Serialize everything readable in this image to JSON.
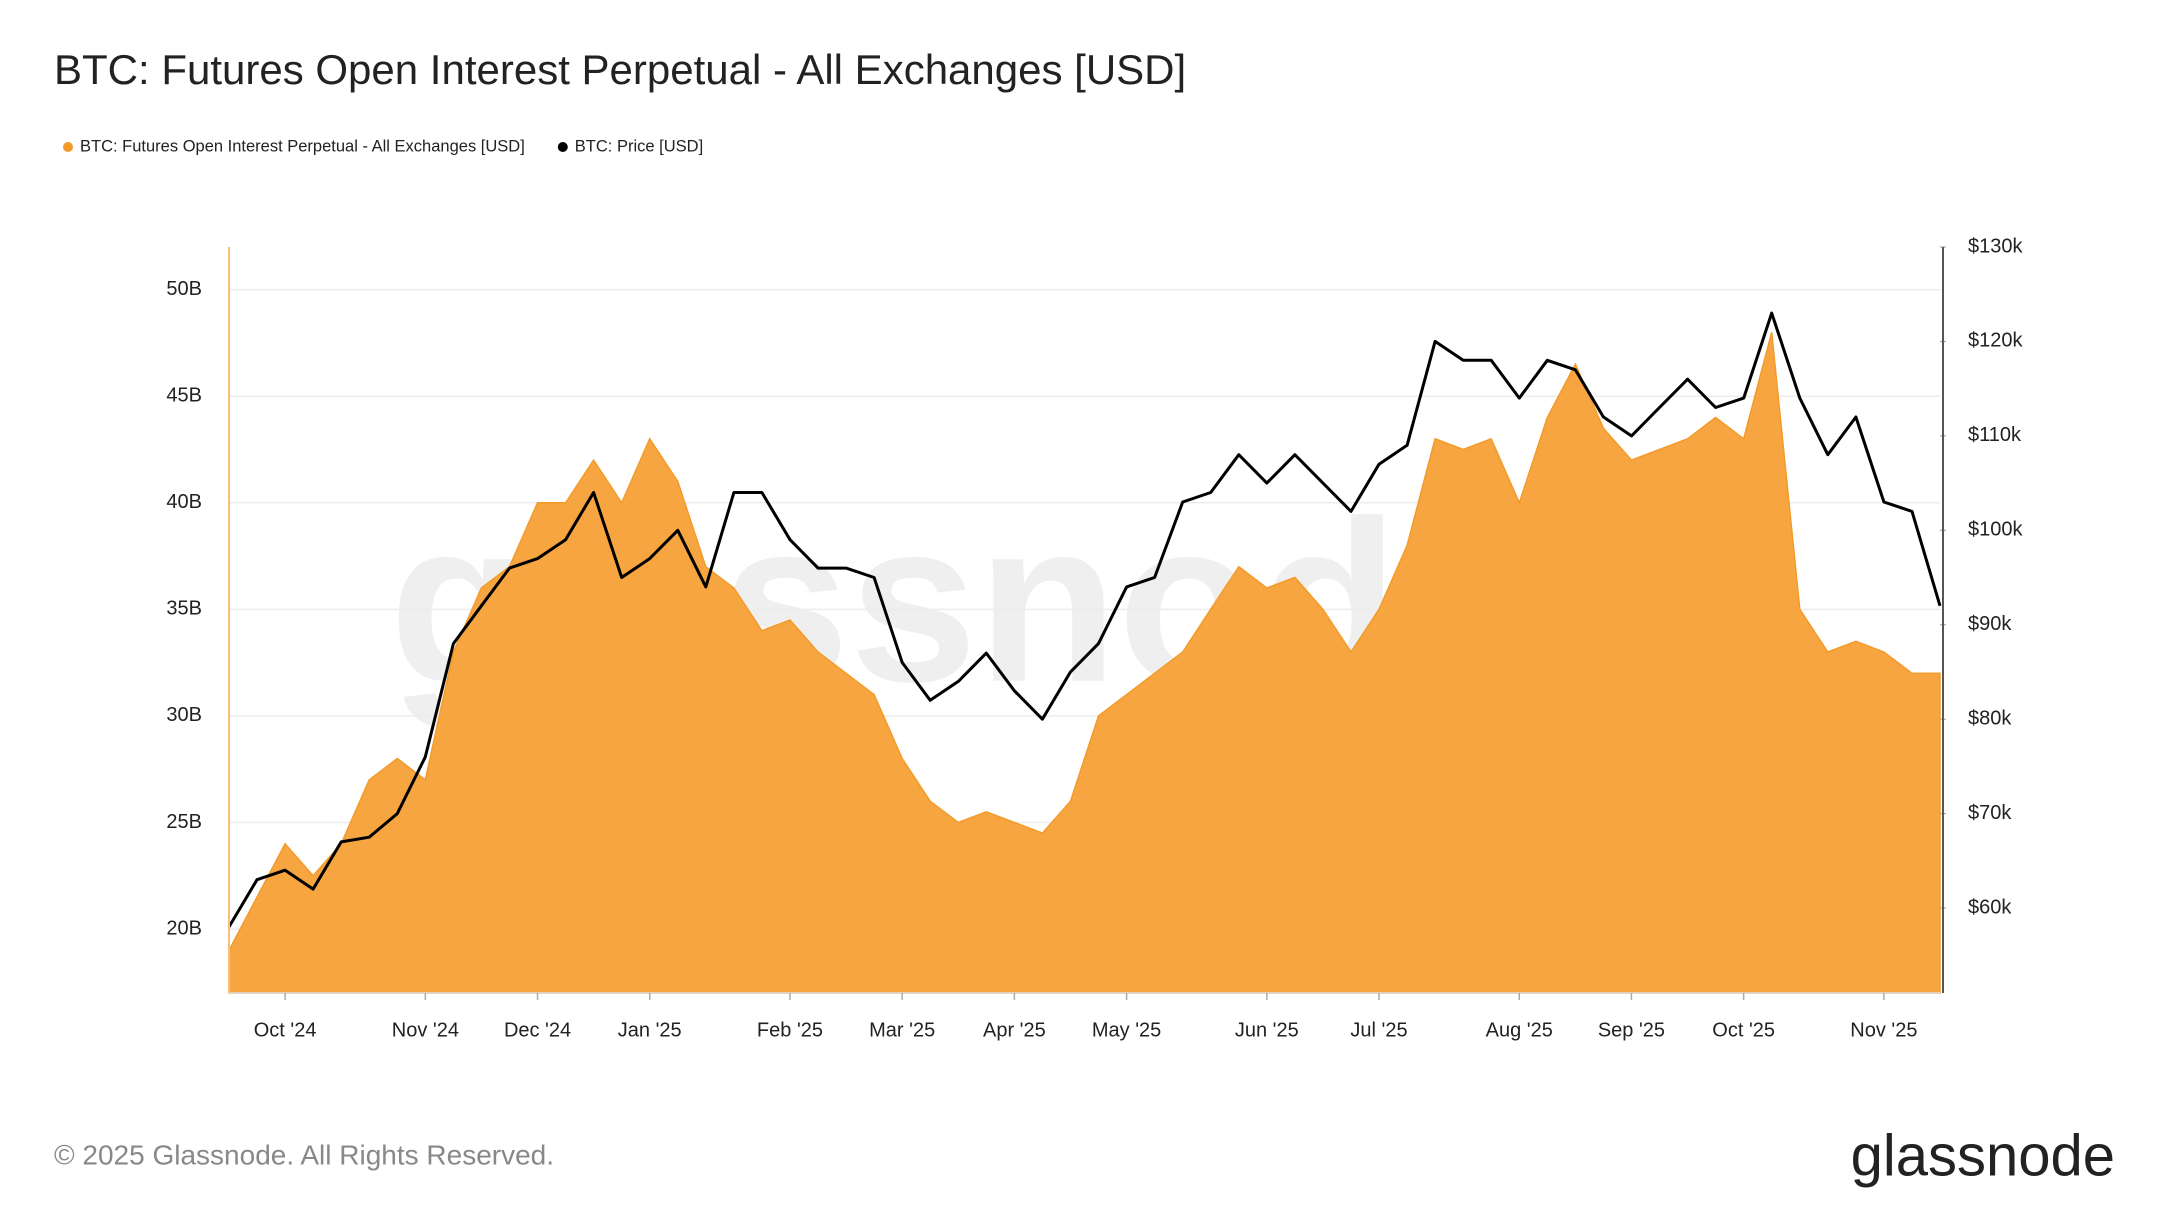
{
  "chart_data": {
    "type": "area-line",
    "title": "BTC: Futures Open Interest Perpetual - All Exchanges [USD]",
    "watermark": "glassnode",
    "footer": "© 2025 Glassnode. All Rights Reserved.",
    "brand": "glassnode",
    "categories": [
      null,
      null,
      "Oct '24",
      null,
      null,
      null,
      null,
      "Nov '24",
      null,
      null,
      null,
      "Dec '24",
      null,
      null,
      null,
      "Jan '25",
      null,
      null,
      null,
      null,
      "Feb '25",
      null,
      null,
      null,
      "Mar '25",
      null,
      null,
      null,
      "Apr '25",
      null,
      null,
      null,
      "May '25",
      null,
      null,
      null,
      null,
      "Jun '25",
      null,
      null,
      null,
      "Jul '25",
      null,
      null,
      null,
      null,
      "Aug '25",
      null,
      null,
      null,
      "Sep '25",
      null,
      null,
      null,
      "Oct '25",
      null,
      null,
      null,
      null,
      "Nov '25",
      null,
      null
    ],
    "series": [
      {
        "name": "BTC: Futures Open Interest Perpetual - All Exchanges [USD]",
        "color": "#f7a541",
        "axis": "y",
        "kind": "area",
        "values": [
          19000000000,
          21500000000,
          24000000000,
          22500000000,
          24000000000,
          27000000000,
          28000000000,
          27000000000,
          33000000000,
          36000000000,
          37000000000,
          40000000000,
          40000000000,
          42000000000,
          40000000000,
          43000000000,
          41000000000,
          37000000000,
          36000000000,
          34000000000,
          34500000000,
          33000000000,
          32000000000,
          31000000000,
          28000000000,
          26000000000,
          25000000000,
          25500000000,
          25000000000,
          24500000000,
          26000000000,
          30000000000,
          31000000000,
          32000000000,
          33000000000,
          35000000000,
          37000000000,
          36000000000,
          36500000000,
          35000000000,
          33000000000,
          35000000000,
          38000000000,
          43000000000,
          42500000000,
          43000000000,
          40000000000,
          44000000000,
          46500000000,
          43500000000,
          42000000000,
          42500000000,
          43000000000,
          44000000000,
          43000000000,
          48000000000,
          35000000000,
          33000000000,
          33500000000,
          33000000000,
          32000000000,
          32000000000
        ]
      },
      {
        "name": "BTC: Price [USD]",
        "color": "#000000",
        "axis": "y2",
        "kind": "line",
        "values": [
          58000,
          63000,
          64000,
          62000,
          67000,
          67500,
          70000,
          76000,
          88000,
          92000,
          96000,
          97000,
          99000,
          104000,
          95000,
          97000,
          100000,
          94000,
          104000,
          104000,
          99000,
          96000,
          96000,
          95000,
          86000,
          82000,
          84000,
          87000,
          83000,
          80000,
          85000,
          88000,
          94000,
          95000,
          103000,
          104000,
          108000,
          105000,
          108000,
          105000,
          102000,
          107000,
          109000,
          120000,
          118000,
          118000,
          114000,
          118000,
          117000,
          112000,
          110000,
          113000,
          116000,
          113000,
          114000,
          123000,
          114000,
          108000,
          112000,
          103000,
          102000,
          92000
        ]
      }
    ],
    "ylim": [
      17000000000,
      52000000000
    ],
    "yticks": [
      {
        "value": 20000000000,
        "label": "20B"
      },
      {
        "value": 25000000000,
        "label": "25B"
      },
      {
        "value": 30000000000,
        "label": "30B"
      },
      {
        "value": 35000000000,
        "label": "35B"
      },
      {
        "value": 40000000000,
        "label": "40B"
      },
      {
        "value": 45000000000,
        "label": "45B"
      },
      {
        "value": 50000000000,
        "label": "50B"
      }
    ],
    "y2lim": [
      51000,
      130000
    ],
    "y2ticks": [
      {
        "value": 60000,
        "label": "$60k"
      },
      {
        "value": 70000,
        "label": "$70k"
      },
      {
        "value": 80000,
        "label": "$80k"
      },
      {
        "value": 90000,
        "label": "$90k"
      },
      {
        "value": 100000,
        "label": "$100k"
      },
      {
        "value": 110000,
        "label": "$110k"
      },
      {
        "value": 120000,
        "label": "$120k"
      },
      {
        "value": 130000,
        "label": "$130k"
      }
    ],
    "grid": true,
    "legend": "top-left"
  }
}
